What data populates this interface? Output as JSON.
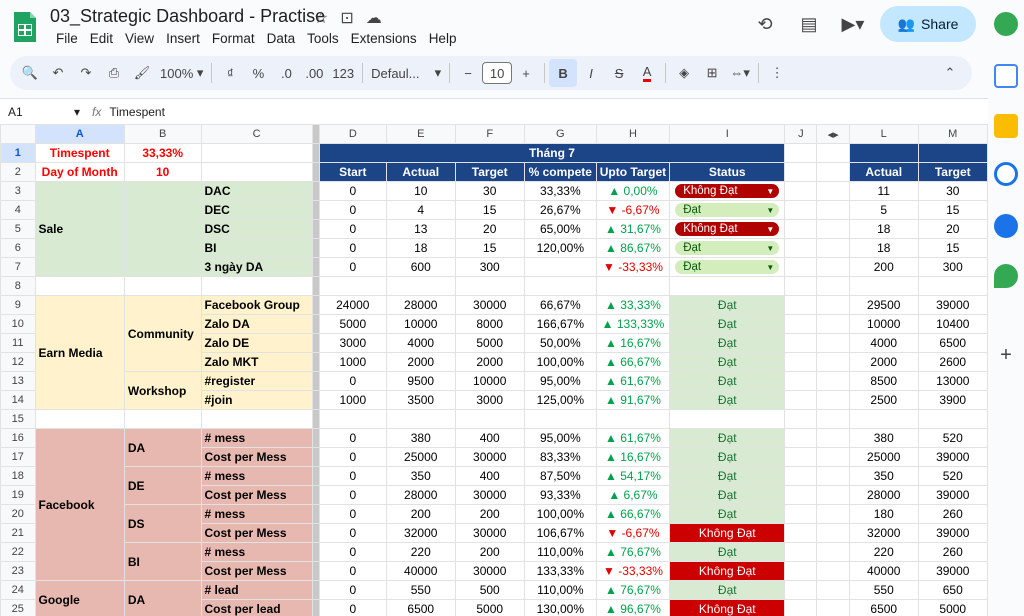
{
  "app": {
    "title": "03_Strategic Dashboard - Practise",
    "menus": [
      "File",
      "Edit",
      "View",
      "Insert",
      "Format",
      "Data",
      "Tools",
      "Extensions",
      "Help"
    ],
    "share_label": "Share"
  },
  "toolbar": {
    "zoom": "100%",
    "font": "Defaul...",
    "font_size": "10",
    "percent": "%",
    "dec_less": ".0",
    "dec_more": ".00",
    "num_fmt": "123"
  },
  "formula_bar": {
    "cell_ref": "A1",
    "fx": "fx",
    "content": "Timespent"
  },
  "columns": [
    "A",
    "B",
    "C",
    "D",
    "E",
    "F",
    "G",
    "H",
    "I",
    "J",
    "L",
    "M"
  ],
  "top": {
    "timespent_label": "Timespent",
    "timespent_value": "33,33%",
    "dom_label": "Day of Month",
    "dom_value": "10",
    "month_header": "Tháng 7",
    "headers": [
      "Start",
      "Actual",
      "Target",
      "% compete",
      "Upto Target",
      "Status"
    ],
    "right_headers": [
      "Actual",
      "Target"
    ]
  },
  "groups": {
    "sale": "Sale",
    "earn": "Earn Media",
    "community": "Community",
    "workshop": "Workshop",
    "facebook": "Facebook",
    "google": "Google",
    "da": "DA",
    "de": "DE",
    "ds": "DS",
    "bi": "BI"
  },
  "rows": [
    {
      "n": "3",
      "c": "DAC",
      "d": "0",
      "e": "10",
      "f": "30",
      "g": "33,33%",
      "h": "▲ 0,00%",
      "dir": "up",
      "i": "Không Đạt",
      "chip": "r",
      "l": "11",
      "m": "30"
    },
    {
      "n": "4",
      "c": "DEC",
      "d": "0",
      "e": "4",
      "f": "15",
      "g": "26,67%",
      "h": "▼ -6,67%",
      "dir": "down",
      "i": "Đạt",
      "chip": "g",
      "l": "5",
      "m": "15"
    },
    {
      "n": "5",
      "c": "DSC",
      "d": "0",
      "e": "13",
      "f": "20",
      "g": "65,00%",
      "h": "▲ 31,67%",
      "dir": "up",
      "i": "Không Đạt",
      "chip": "r",
      "l": "18",
      "m": "20"
    },
    {
      "n": "6",
      "c": "BI",
      "d": "0",
      "e": "18",
      "f": "15",
      "g": "120,00%",
      "h": "▲ 86,67%",
      "dir": "up",
      "i": "Đạt",
      "chip": "g",
      "l": "18",
      "m": "15"
    },
    {
      "n": "7",
      "c": "3 ngày DA",
      "d": "0",
      "e": "600",
      "f": "300",
      "g": "",
      "h": "▼ -33,33%",
      "dir": "down",
      "i": "Đạt",
      "chip": "g",
      "l": "200",
      "m": "300"
    },
    {
      "n": "8"
    },
    {
      "n": "9",
      "c": "Facebook Group",
      "d": "24000",
      "e": "28000",
      "f": "30000",
      "g": "66,67%",
      "h": "▲ 33,33%",
      "dir": "up",
      "i": "Đạt",
      "st": "g",
      "l": "29500",
      "m": "39000"
    },
    {
      "n": "10",
      "c": "Zalo DA",
      "d": "5000",
      "e": "10000",
      "f": "8000",
      "g": "166,67%",
      "h": "▲ 133,33%",
      "dir": "up",
      "i": "Đạt",
      "st": "g",
      "l": "10000",
      "m": "10400"
    },
    {
      "n": "11",
      "c": "Zalo DE",
      "d": "3000",
      "e": "4000",
      "f": "5000",
      "g": "50,00%",
      "h": "▲ 16,67%",
      "dir": "up",
      "i": "Đạt",
      "st": "g",
      "l": "4000",
      "m": "6500"
    },
    {
      "n": "12",
      "c": "Zalo MKT",
      "d": "1000",
      "e": "2000",
      "f": "2000",
      "g": "100,00%",
      "h": "▲ 66,67%",
      "dir": "up",
      "i": "Đạt",
      "st": "g",
      "l": "2000",
      "m": "2600"
    },
    {
      "n": "13",
      "c": "#register",
      "d": "0",
      "e": "9500",
      "f": "10000",
      "g": "95,00%",
      "h": "▲ 61,67%",
      "dir": "up",
      "i": "Đạt",
      "st": "g",
      "l": "8500",
      "m": "13000"
    },
    {
      "n": "14",
      "c": "#join",
      "d": "1000",
      "e": "3500",
      "f": "3000",
      "g": "125,00%",
      "h": "▲ 91,67%",
      "dir": "up",
      "i": "Đạt",
      "st": "g",
      "l": "2500",
      "m": "3900"
    },
    {
      "n": "15"
    },
    {
      "n": "16",
      "c": "# mess",
      "d": "0",
      "e": "380",
      "f": "400",
      "g": "95,00%",
      "h": "▲ 61,67%",
      "dir": "up",
      "i": "Đạt",
      "st": "g",
      "l": "380",
      "m": "520"
    },
    {
      "n": "17",
      "c": "Cost per Mess",
      "d": "0",
      "e": "25000",
      "f": "30000",
      "g": "83,33%",
      "h": "▲ 16,67%",
      "dir": "up",
      "i": "Đạt",
      "st": "g",
      "l": "25000",
      "m": "39000"
    },
    {
      "n": "18",
      "c": "# mess",
      "d": "0",
      "e": "350",
      "f": "400",
      "g": "87,50%",
      "h": "▲ 54,17%",
      "dir": "up",
      "i": "Đạt",
      "st": "g",
      "l": "350",
      "m": "520"
    },
    {
      "n": "19",
      "c": "Cost per Mess",
      "d": "0",
      "e": "28000",
      "f": "30000",
      "g": "93,33%",
      "h": "▲ 6,67%",
      "dir": "up",
      "i": "Đạt",
      "st": "g",
      "l": "28000",
      "m": "39000"
    },
    {
      "n": "20",
      "c": "# mess",
      "d": "0",
      "e": "200",
      "f": "200",
      "g": "100,00%",
      "h": "▲ 66,67%",
      "dir": "up",
      "i": "Đạt",
      "st": "g",
      "l": "180",
      "m": "260"
    },
    {
      "n": "21",
      "c": "Cost per Mess",
      "d": "0",
      "e": "32000",
      "f": "30000",
      "g": "106,67%",
      "h": "▼ -6,67%",
      "dir": "down",
      "i": "Không Đạt",
      "st": "r",
      "l": "32000",
      "m": "39000"
    },
    {
      "n": "22",
      "c": "# mess",
      "d": "0",
      "e": "220",
      "f": "200",
      "g": "110,00%",
      "h": "▲ 76,67%",
      "dir": "up",
      "i": "Đạt",
      "st": "g",
      "l": "220",
      "m": "260"
    },
    {
      "n": "23",
      "c": "Cost per Mess",
      "d": "0",
      "e": "40000",
      "f": "30000",
      "g": "133,33%",
      "h": "▼ -33,33%",
      "dir": "down",
      "i": "Không Đạt",
      "st": "r",
      "l": "40000",
      "m": "39000"
    },
    {
      "n": "24",
      "c": "# lead",
      "d": "0",
      "e": "550",
      "f": "500",
      "g": "110,00%",
      "h": "▲ 76,67%",
      "dir": "up",
      "i": "Đạt",
      "st": "g",
      "l": "550",
      "m": "650"
    },
    {
      "n": "25",
      "c": "Cost per lead",
      "d": "0",
      "e": "6500",
      "f": "5000",
      "g": "130,00%",
      "h": "▲ 96,67%",
      "dir": "up",
      "i": "Không Đạt",
      "st": "r",
      "l": "6500",
      "m": "5000"
    }
  ]
}
